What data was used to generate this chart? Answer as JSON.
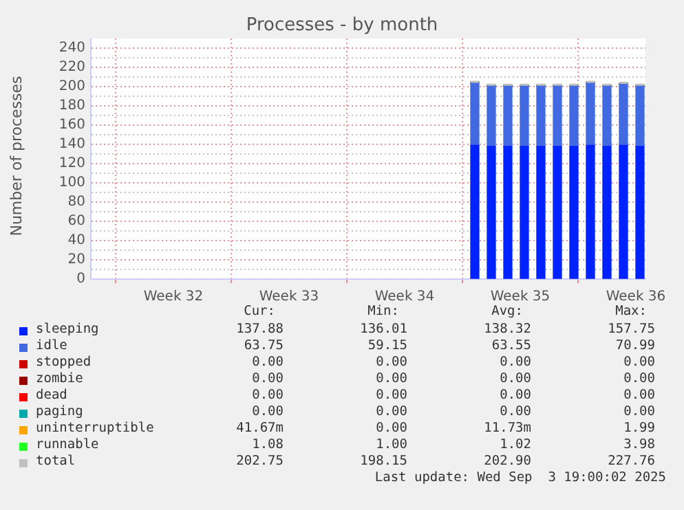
{
  "chart_data": {
    "type": "bar",
    "title": "Processes - by month",
    "ylabel": "Number of processes",
    "stacked": true,
    "grid": true,
    "legend": "bottom",
    "x": [
      "2025-08-25T18:00",
      "2025-08-26T18:00",
      "2025-08-27T18:00",
      "2025-08-28T18:00",
      "2025-08-29T18:00",
      "2025-08-30T18:00",
      "2025-08-31T18:00",
      "2025-09-01T18:00",
      "2025-09-02T18:00",
      "2025-09-03T18:00",
      "2025-09-04T18:00"
    ],
    "xlim": [
      "2025-08-02T12:00",
      "2025-09-05T02:00"
    ],
    "xticks": [
      {
        "value": "2025-08-04T00:00",
        "label": null
      },
      {
        "value": "2025-08-07T12:00",
        "label": "Week 32"
      },
      {
        "value": "2025-08-11T00:00",
        "label": null
      },
      {
        "value": "2025-08-14T12:00",
        "label": "Week 33"
      },
      {
        "value": "2025-08-18T00:00",
        "label": null
      },
      {
        "value": "2025-08-21T12:00",
        "label": "Week 34"
      },
      {
        "value": "2025-08-25T00:00",
        "label": null
      },
      {
        "value": "2025-08-28T12:00",
        "label": "Week 35"
      },
      {
        "value": "2025-09-01T00:00",
        "label": null
      },
      {
        "value": "2025-09-04T12:00",
        "label": "Week 36"
      }
    ],
    "ylim": [
      0,
      250
    ],
    "yticks": [
      0,
      {
        "value": 10,
        "label": null
      },
      20,
      {
        "value": 30,
        "label": null
      },
      40,
      {
        "value": 50,
        "label": null
      },
      60,
      {
        "value": 70,
        "label": null
      },
      80,
      {
        "value": 90,
        "label": null
      },
      100,
      {
        "value": 110,
        "label": null
      },
      120,
      {
        "value": 130,
        "label": null
      },
      140,
      {
        "value": 150,
        "label": null
      },
      160,
      {
        "value": 170,
        "label": null
      },
      180,
      {
        "value": 190,
        "label": null
      },
      200,
      {
        "value": 210,
        "label": null
      },
      220,
      {
        "value": 230,
        "label": null
      },
      240
    ],
    "series": [
      {
        "name": "sleeping",
        "color": "#0022ff",
        "values": [
          139,
          138,
          138,
          138,
          138,
          138,
          138,
          139,
          138,
          139,
          138
        ]
      },
      {
        "name": "idle",
        "color": "#4169e1",
        "values": [
          65,
          63,
          63,
          63,
          63,
          63,
          63,
          65,
          63,
          64,
          63
        ]
      },
      {
        "name": "stopped",
        "color": "#cc0000",
        "values": [
          0,
          0,
          0,
          0,
          0,
          0,
          0,
          0,
          0,
          0,
          0
        ]
      },
      {
        "name": "zombie",
        "color": "#990000",
        "values": [
          0,
          0,
          0,
          0,
          0,
          0,
          0,
          0,
          0,
          0,
          0
        ]
      },
      {
        "name": "dead",
        "color": "#ff0000",
        "values": [
          0,
          0,
          0,
          0,
          0,
          0,
          0,
          0,
          0,
          0,
          0
        ]
      },
      {
        "name": "paging",
        "color": "#00aaaa",
        "values": [
          0,
          0,
          0,
          0,
          0,
          0,
          0,
          0,
          0,
          0,
          0
        ]
      },
      {
        "name": "uninterruptible",
        "color": "#ffa500",
        "values": [
          0,
          0,
          0,
          0,
          0,
          0,
          0,
          0,
          0,
          0,
          0
        ]
      },
      {
        "name": "runnable",
        "color": "#22ff22",
        "values": [
          1,
          1,
          1,
          1,
          1,
          1,
          1,
          1,
          1,
          1,
          1
        ]
      },
      {
        "name": "total",
        "color": "#c0c0c0",
        "type": "line",
        "x": [
          "2025-08-25T12:00",
          "2025-08-26T00:00",
          "2025-08-26T06:00",
          "2025-08-26T12:00",
          "2025-08-27T00:00",
          "2025-08-27T06:00",
          "2025-08-27T12:00",
          "2025-08-28T00:00",
          "2025-08-28T06:00",
          "2025-08-28T12:00",
          "2025-08-29T00:00",
          "2025-08-29T06:00",
          "2025-08-29T12:00",
          "2025-08-30T00:00",
          "2025-08-30T06:00",
          "2025-08-30T12:00",
          "2025-08-31T00:00",
          "2025-08-31T06:00",
          "2025-08-31T12:00",
          "2025-09-01T00:00",
          "2025-09-01T06:00",
          "2025-09-01T12:00",
          "2025-09-02T00:00",
          "2025-09-02T06:00",
          "2025-09-02T12:00",
          "2025-09-03T00:00",
          "2025-09-03T06:00",
          "2025-09-03T12:00",
          "2025-09-04T00:00",
          "2025-09-04T06:00",
          "2025-09-04T12:00",
          "2025-09-05T00:00"
        ],
        "values": [
          205,
          205,
          null,
          202,
          202,
          null,
          202,
          202,
          null,
          202,
          202,
          null,
          202,
          202,
          null,
          202,
          202,
          null,
          202,
          202,
          null,
          205,
          205,
          null,
          202,
          202,
          null,
          204,
          204,
          null,
          202,
          202
        ]
      }
    ],
    "annotations": [
      "Cur:",
      "Min:",
      "Avg:",
      "Max:",
      "137.88",
      "136.01",
      "138.32",
      "157.75",
      "63.75",
      "59.15",
      "63.55",
      "70.99",
      "0.00",
      "0.00",
      "0.00",
      "0.00",
      "0.00",
      "0.00",
      "0.00",
      "0.00",
      "0.00",
      "0.00",
      "0.00",
      "0.00",
      "0.00",
      "0.00",
      "0.00",
      "0.00",
      "41.67m",
      "0.00",
      "11.73m",
      "1.99",
      "1.08",
      "1.00",
      "1.02",
      "3.98",
      "202.75",
      "198.15",
      "202.90",
      "227.76",
      "Last update: Wed Sep  3 19:00:02 2025"
    ]
  }
}
